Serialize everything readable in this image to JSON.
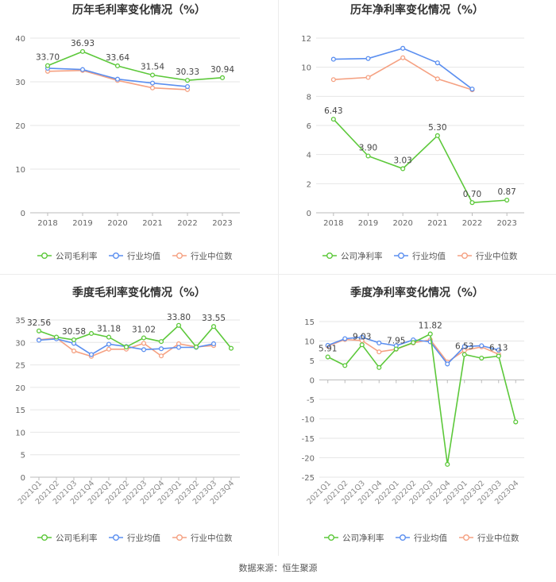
{
  "colors": {
    "company": "#5cc83a",
    "avg": "#5b8ff0",
    "median": "#f5a182"
  },
  "legend": {
    "company_gross": "公司毛利率",
    "company_net": "公司净利率",
    "avg": "行业均值",
    "median": "行业中位数"
  },
  "source": "数据来源：恒生聚源",
  "chart_data": [
    {
      "type": "line",
      "title": "历年毛利率变化情况（%）",
      "categories": [
        "2018",
        "2019",
        "2020",
        "2021",
        "2022",
        "2023"
      ],
      "ylim": [
        0,
        40
      ],
      "yticks": [
        "0",
        "10",
        "20",
        "30",
        "40"
      ],
      "grid": true,
      "legend_position": "bottom",
      "series": [
        {
          "name": "公司毛利率",
          "role": "company",
          "values": [
            33.7,
            36.93,
            33.64,
            31.54,
            30.33,
            30.94
          ],
          "labels": [
            "33.70",
            "36.93",
            "33.64",
            "31.54",
            "30.33",
            "30.94"
          ]
        },
        {
          "name": "行业均值",
          "role": "avg",
          "values": [
            33.1,
            32.8,
            30.6,
            29.7,
            28.9,
            null
          ]
        },
        {
          "name": "行业中位数",
          "role": "median",
          "values": [
            32.4,
            32.6,
            30.3,
            28.6,
            28.2,
            null
          ]
        }
      ]
    },
    {
      "type": "line",
      "title": "历年净利率变化情况（%）",
      "categories": [
        "2018",
        "2019",
        "2020",
        "2021",
        "2022",
        "2023"
      ],
      "ylim": [
        0,
        12
      ],
      "yticks": [
        "0",
        "2",
        "4",
        "6",
        "8",
        "10",
        "12"
      ],
      "grid": true,
      "legend_position": "bottom",
      "series": [
        {
          "name": "公司净利率",
          "role": "company",
          "values": [
            6.43,
            3.9,
            3.03,
            5.3,
            0.7,
            0.87
          ],
          "labels": [
            "6.43",
            "3.90",
            "3.03",
            "5.30",
            "0.70",
            "0.87"
          ]
        },
        {
          "name": "行业均值",
          "role": "avg",
          "values": [
            10.55,
            10.6,
            11.3,
            10.3,
            8.5,
            null
          ]
        },
        {
          "name": "行业中位数",
          "role": "median",
          "values": [
            9.15,
            9.3,
            10.65,
            9.2,
            8.45,
            null
          ]
        }
      ]
    },
    {
      "type": "line",
      "title": "季度毛利率变化情况（%）",
      "categories": [
        "2021Q1",
        "2021Q2",
        "2021Q3",
        "2021Q4",
        "2022Q1",
        "2022Q2",
        "2022Q3",
        "2022Q4",
        "2023Q1",
        "2023Q2",
        "2023Q3",
        "2023Q4"
      ],
      "ylim": [
        0,
        35
      ],
      "yticks": [
        "0",
        "5",
        "10",
        "15",
        "20",
        "25",
        "30",
        "35"
      ],
      "grid": true,
      "legend_position": "bottom",
      "series": [
        {
          "name": "公司毛利率",
          "role": "company",
          "values": [
            32.56,
            31.2,
            30.58,
            32.0,
            31.18,
            29.0,
            31.02,
            30.2,
            33.8,
            29.0,
            33.55,
            28.7
          ],
          "labels": [
            "32.56",
            "",
            "30.58",
            "",
            "31.18",
            "",
            "31.02",
            "",
            "33.80",
            "",
            "33.55",
            ""
          ]
        },
        {
          "name": "行业均值",
          "role": "avg",
          "values": [
            30.5,
            30.8,
            29.8,
            27.3,
            29.6,
            29.1,
            28.4,
            28.6,
            28.9,
            28.9,
            29.7,
            null
          ]
        },
        {
          "name": "行业中位数",
          "role": "median",
          "values": [
            30.6,
            31.0,
            28.1,
            26.9,
            28.5,
            28.5,
            29.8,
            27.0,
            29.7,
            29.0,
            29.3,
            null
          ]
        }
      ]
    },
    {
      "type": "line",
      "title": "季度净利率变化情况（%）",
      "categories": [
        "2021Q1",
        "2021Q2",
        "2021Q3",
        "2021Q4",
        "2022Q1",
        "2022Q2",
        "2022Q3",
        "2022Q4",
        "2023Q1",
        "2023Q2",
        "2023Q3",
        "2023Q4"
      ],
      "ylim": [
        -25,
        15
      ],
      "yticks": [
        "-25",
        "-20",
        "-15",
        "-10",
        "-5",
        "0",
        "5",
        "10",
        "15"
      ],
      "grid": true,
      "legend_position": "bottom",
      "series": [
        {
          "name": "公司净利率",
          "role": "company",
          "values": [
            5.91,
            3.7,
            9.03,
            3.2,
            7.95,
            9.6,
            11.82,
            -21.7,
            6.53,
            5.6,
            6.13,
            -10.8
          ],
          "labels": [
            "5.91",
            "",
            "9.03",
            "",
            "7.95",
            "",
            "11.82",
            "",
            "6.53",
            "",
            "6.13",
            ""
          ]
        },
        {
          "name": "行业均值",
          "role": "avg",
          "values": [
            8.9,
            10.6,
            11.0,
            9.5,
            8.8,
            10.3,
            9.8,
            4.1,
            8.6,
            8.8,
            7.7,
            null
          ]
        },
        {
          "name": "行业中位数",
          "role": "median",
          "values": [
            8.7,
            10.4,
            10.1,
            7.2,
            7.9,
            9.5,
            10.3,
            4.6,
            7.6,
            8.5,
            6.6,
            null
          ]
        }
      ]
    }
  ]
}
